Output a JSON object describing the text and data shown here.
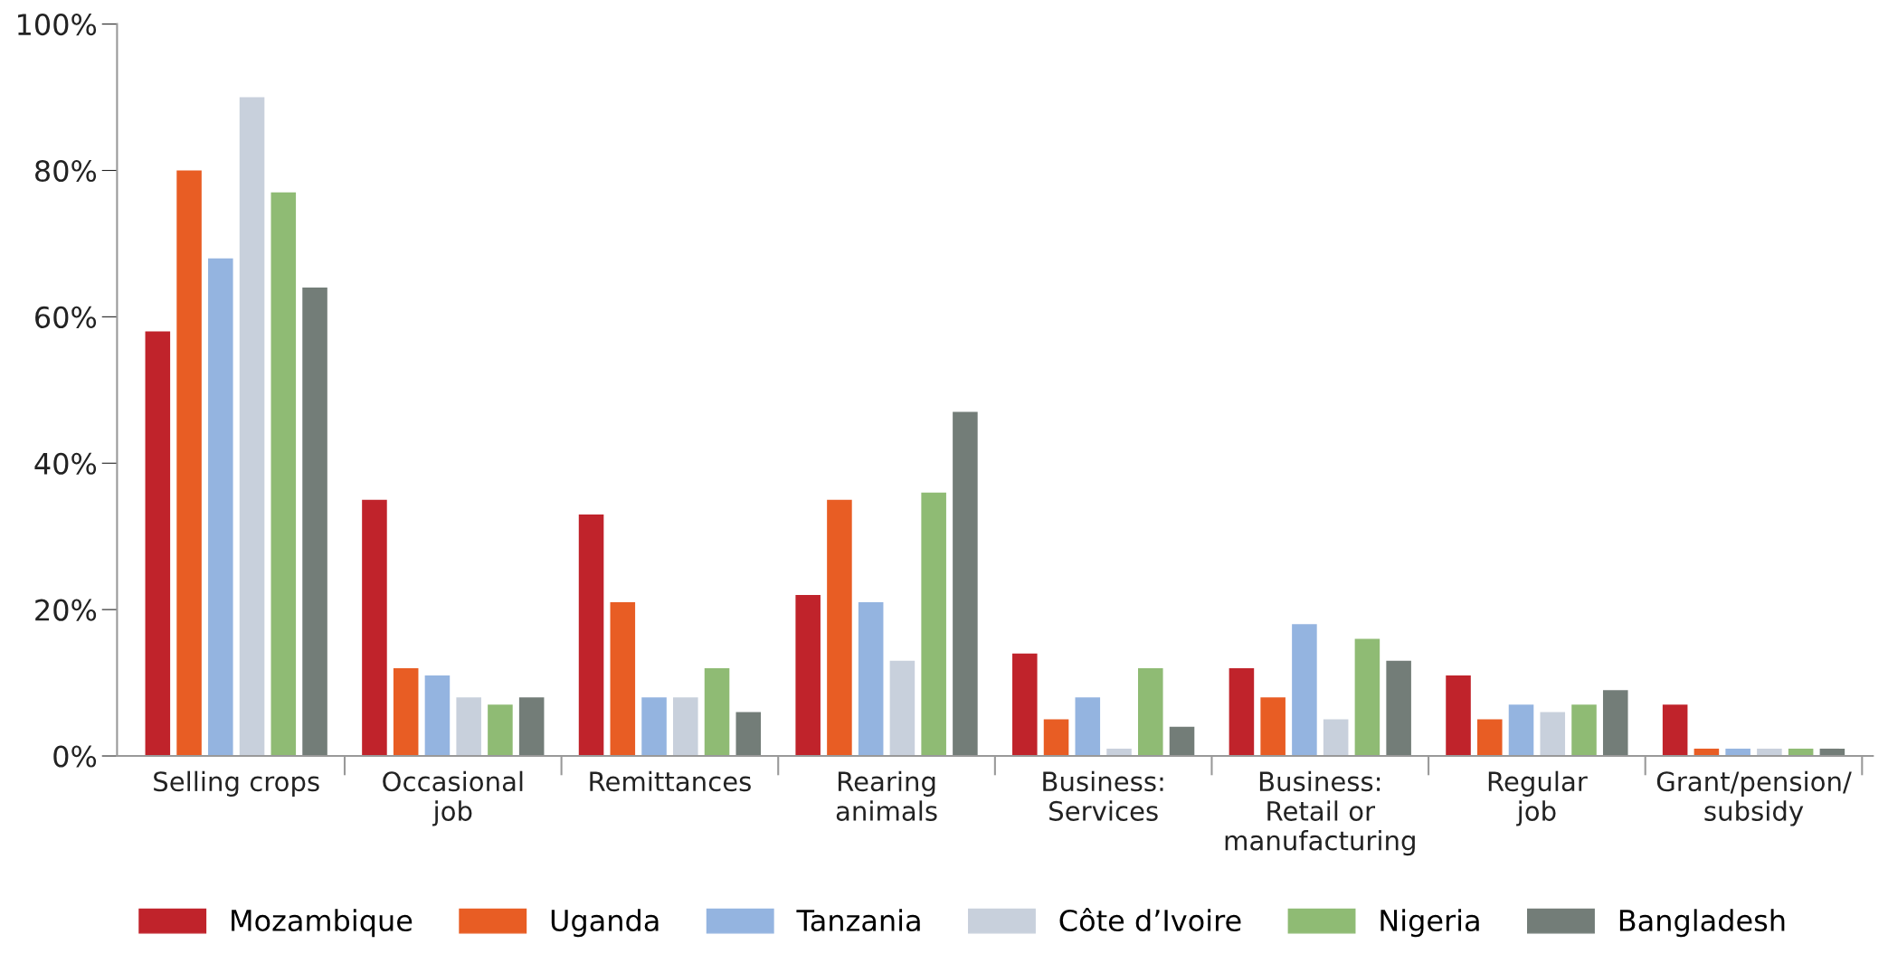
{
  "chart_data": {
    "type": "bar",
    "categories": [
      "Selling crops",
      "Occasional\njob",
      "Remittances",
      "Rearing\nanimals",
      "Business:\nServices",
      "Business:\nRetail or\nmanufacturing",
      "Regular\njob",
      "Grant/pension/\nsubsidy"
    ],
    "series": [
      {
        "name": "Mozambique",
        "color": "#c0232b",
        "values": [
          58,
          35,
          33,
          22,
          14,
          12,
          11,
          7
        ]
      },
      {
        "name": "Uganda",
        "color": "#e85d24",
        "values": [
          80,
          12,
          21,
          35,
          5,
          8,
          5,
          1
        ]
      },
      {
        "name": "Tanzania",
        "color": "#94b4e0",
        "values": [
          68,
          11,
          8,
          21,
          8,
          18,
          7,
          1
        ]
      },
      {
        "name": "Côte d’Ivoire",
        "color": "#c8d0dc",
        "values": [
          90,
          8,
          8,
          13,
          1,
          5,
          6,
          1
        ]
      },
      {
        "name": "Nigeria",
        "color": "#8fbb74",
        "values": [
          77,
          7,
          12,
          36,
          12,
          16,
          7,
          1
        ]
      },
      {
        "name": "Bangladesh",
        "color": "#737d78",
        "values": [
          64,
          8,
          6,
          47,
          4,
          13,
          9,
          1
        ]
      }
    ],
    "ylim": [
      0,
      100
    ],
    "yticks": [
      {
        "value": 0,
        "label": "0%"
      },
      {
        "value": 20,
        "label": "20%"
      },
      {
        "value": 40,
        "label": "40%"
      },
      {
        "value": 60,
        "label": "60%"
      },
      {
        "value": 80,
        "label": "80%"
      },
      {
        "value": 100,
        "label": "100%"
      }
    ],
    "grid": false,
    "legend": "bottom"
  }
}
